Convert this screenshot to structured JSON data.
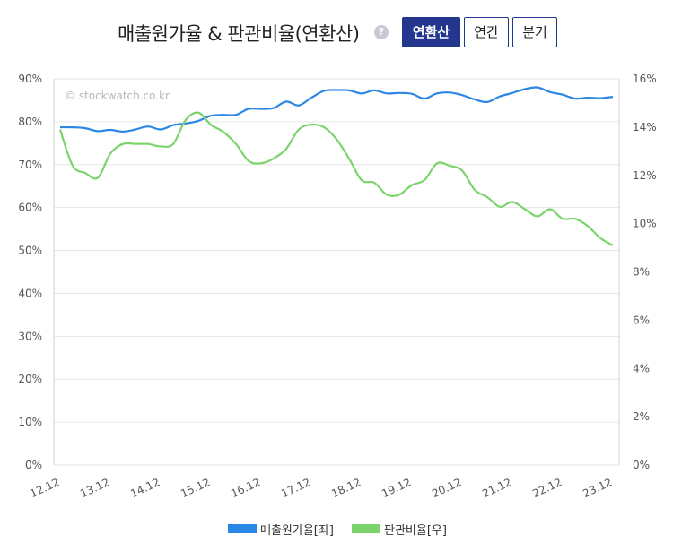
{
  "header": {
    "title": "매출원가율 & 판관비율(연환산)",
    "help_symbol": "?",
    "buttons": [
      {
        "label": "연환산",
        "active": true
      },
      {
        "label": "연간",
        "active": false
      },
      {
        "label": "분기",
        "active": false
      }
    ]
  },
  "colors": {
    "series1": "#2b87e6",
    "series2": "#7ad46b",
    "grid": "#e6e6e6",
    "button_active": "#24378f"
  },
  "chart_data": {
    "type": "line",
    "watermark": "© stockwatch.co.kr",
    "x_labels": [
      "12.12",
      "13.12",
      "14.12",
      "15.12",
      "16.12",
      "17.12",
      "18.12",
      "19.12",
      "20.12",
      "21.12",
      "22.12",
      "23.12"
    ],
    "y_left": {
      "min": 0,
      "max": 90,
      "ticks": [
        "0%",
        "10%",
        "20%",
        "30%",
        "40%",
        "50%",
        "60%",
        "70%",
        "80%",
        "90%"
      ]
    },
    "y_right": {
      "min": 0,
      "max": 16,
      "ticks": [
        "0%",
        "2%",
        "4%",
        "6%",
        "8%",
        "10%",
        "12%",
        "14%",
        "16%"
      ]
    },
    "grid": true,
    "legend_position": "bottom",
    "series": [
      {
        "name": "매출원가율[좌]",
        "axis": "left",
        "values": [
          78.7,
          78.7,
          78.5,
          77.8,
          78.1,
          77.7,
          78.2,
          78.9,
          78.2,
          79.2,
          79.6,
          80.2,
          81.4,
          81.6,
          81.6,
          83.0,
          83.0,
          83.2,
          84.7,
          83.8,
          85.6,
          87.2,
          87.4,
          87.3,
          86.6,
          87.3,
          86.6,
          86.7,
          86.5,
          85.4,
          86.6,
          86.8,
          86.2,
          85.2,
          84.6,
          85.9,
          86.7,
          87.6,
          88.0,
          86.9,
          86.3,
          85.4,
          85.6,
          85.5,
          85.8
        ]
      },
      {
        "name": "판관비율[우]",
        "axis": "right",
        "values": [
          13.9,
          12.4,
          12.1,
          11.9,
          12.9,
          13.3,
          13.3,
          13.3,
          13.2,
          13.3,
          14.3,
          14.6,
          14.1,
          13.8,
          13.3,
          12.6,
          12.5,
          12.7,
          13.1,
          13.9,
          14.1,
          14.0,
          13.5,
          12.7,
          11.8,
          11.7,
          11.2,
          11.2,
          11.6,
          11.8,
          12.5,
          12.4,
          12.2,
          11.4,
          11.1,
          10.7,
          10.9,
          10.6,
          10.3,
          10.6,
          10.2,
          10.2,
          9.9,
          9.4,
          9.1
        ]
      }
    ]
  }
}
